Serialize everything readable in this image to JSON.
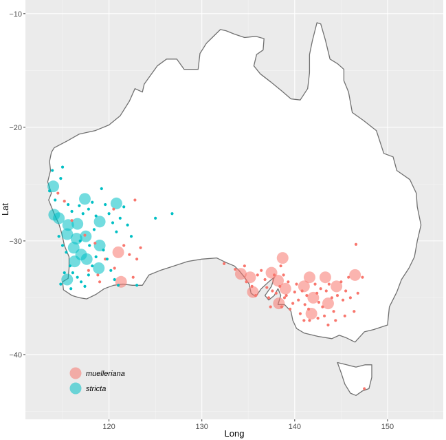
{
  "chart_data": {
    "type": "scatter",
    "xlabel": "Long",
    "ylabel": "Lat",
    "xlim": [
      111,
      156
    ],
    "ylim": [
      -45.7,
      -8.8
    ],
    "x_ticks": [
      120,
      130,
      140,
      150
    ],
    "y_ticks": [
      -10,
      -20,
      -30,
      -40
    ],
    "grid": true,
    "background": "map of Australia (white land, grey coastline)",
    "legend_position": "bottom-left",
    "series": [
      {
        "name": "muelleriana",
        "color": "#F8766D",
        "large_points": [
          [
            121.0,
            -31.0
          ],
          [
            121.3,
            -33.6
          ],
          [
            134.2,
            -32.9
          ],
          [
            135.5,
            -34.5
          ],
          [
            135.2,
            -33.2
          ],
          [
            137.5,
            -32.8
          ],
          [
            138.2,
            -33.5
          ],
          [
            138.7,
            -31.5
          ],
          [
            139.0,
            -34.2
          ],
          [
            138.3,
            -35.5
          ],
          [
            141.0,
            -34.0
          ],
          [
            141.6,
            -33.2
          ],
          [
            142.0,
            -35.0
          ],
          [
            141.8,
            -36.4
          ],
          [
            143.3,
            -33.2
          ],
          [
            144.5,
            -34.0
          ],
          [
            143.6,
            -35.5
          ],
          [
            146.5,
            -33.0
          ]
        ],
        "small_points": [
          [
            114.5,
            -25.8
          ],
          [
            115.2,
            -26.5
          ],
          [
            116.0,
            -28.2
          ],
          [
            117.4,
            -29.5
          ],
          [
            118.5,
            -30.2
          ],
          [
            119.6,
            -31.6
          ],
          [
            118.8,
            -33.0
          ],
          [
            120.6,
            -32.4
          ],
          [
            121.6,
            -30.4
          ],
          [
            122.2,
            -31.2
          ],
          [
            122.6,
            -33.2
          ],
          [
            123.0,
            -31.6
          ],
          [
            122.8,
            -26.4
          ],
          [
            120.5,
            -27.2
          ],
          [
            119.0,
            -33.6
          ],
          [
            117.8,
            -32.6
          ],
          [
            123.4,
            -30.6
          ],
          [
            132.4,
            -32.0
          ],
          [
            133.6,
            -32.5
          ],
          [
            134.6,
            -32.2
          ],
          [
            134.8,
            -33.6
          ],
          [
            135.4,
            -34.0
          ],
          [
            135.8,
            -34.8
          ],
          [
            136.0,
            -33.0
          ],
          [
            136.4,
            -32.6
          ],
          [
            136.8,
            -33.4
          ],
          [
            137.0,
            -34.1
          ],
          [
            137.2,
            -35.0
          ],
          [
            137.6,
            -34.4
          ],
          [
            137.8,
            -33.0
          ],
          [
            138.0,
            -34.6
          ],
          [
            138.4,
            -34.0
          ],
          [
            138.5,
            -32.2
          ],
          [
            138.8,
            -33.0
          ],
          [
            138.9,
            -35.0
          ],
          [
            139.1,
            -34.8
          ],
          [
            139.3,
            -33.6
          ],
          [
            139.5,
            -36.0
          ],
          [
            139.8,
            -35.5
          ],
          [
            140.0,
            -34.5
          ],
          [
            140.2,
            -33.8
          ],
          [
            140.4,
            -35.2
          ],
          [
            140.6,
            -36.4
          ],
          [
            140.8,
            -34.4
          ],
          [
            141.1,
            -35.6
          ],
          [
            141.3,
            -34.8
          ],
          [
            141.5,
            -36.0
          ],
          [
            141.6,
            -37.0
          ],
          [
            142.2,
            -33.8
          ],
          [
            142.4,
            -34.6
          ],
          [
            142.6,
            -35.4
          ],
          [
            142.5,
            -36.8
          ],
          [
            142.8,
            -34.2
          ],
          [
            143.0,
            -35.8
          ],
          [
            143.2,
            -36.6
          ],
          [
            143.4,
            -34.4
          ],
          [
            143.7,
            -33.8
          ],
          [
            144.0,
            -35.0
          ],
          [
            144.2,
            -36.2
          ],
          [
            144.6,
            -34.8
          ],
          [
            145.0,
            -33.6
          ],
          [
            145.2,
            -35.2
          ],
          [
            145.5,
            -34.4
          ],
          [
            145.8,
            -33.2
          ],
          [
            146.0,
            -35.0
          ],
          [
            146.8,
            -34.6
          ],
          [
            146.6,
            -30.3
          ],
          [
            147.3,
            -33.2
          ],
          [
            146.4,
            -36.2
          ],
          [
            145.4,
            -36.6
          ],
          [
            144.4,
            -37.0
          ],
          [
            143.6,
            -37.4
          ],
          [
            141.0,
            -37.0
          ],
          [
            138.6,
            -35.8
          ],
          [
            137.4,
            -35.8
          ],
          [
            147.5,
            -43.0
          ]
        ]
      },
      {
        "name": "stricta",
        "color": "#00BFC4",
        "large_points": [
          [
            114.0,
            -25.2
          ],
          [
            114.1,
            -27.7
          ],
          [
            114.6,
            -28.0
          ],
          [
            115.6,
            -28.6
          ],
          [
            116.6,
            -28.5
          ],
          [
            115.5,
            -29.4
          ],
          [
            116.5,
            -29.8
          ],
          [
            117.5,
            -29.6
          ],
          [
            116.2,
            -30.6
          ],
          [
            117.0,
            -31.2
          ],
          [
            117.6,
            -31.6
          ],
          [
            116.3,
            -31.8
          ],
          [
            115.5,
            -33.4
          ],
          [
            117.4,
            -26.3
          ],
          [
            120.8,
            -26.7
          ],
          [
            119.0,
            -28.3
          ],
          [
            119.0,
            -30.4
          ],
          [
            118.9,
            -32.4
          ]
        ],
        "small_points": [
          [
            113.6,
            -25.6
          ],
          [
            114.2,
            -26.4
          ],
          [
            114.8,
            -24.5
          ],
          [
            115.0,
            -23.5
          ],
          [
            115.6,
            -26.8
          ],
          [
            116.0,
            -27.4
          ],
          [
            116.8,
            -26.9
          ],
          [
            117.2,
            -27.6
          ],
          [
            117.8,
            -27.2
          ],
          [
            118.2,
            -26.6
          ],
          [
            118.6,
            -27.8
          ],
          [
            119.2,
            -25.4
          ],
          [
            119.6,
            -26.8
          ],
          [
            120.0,
            -27.6
          ],
          [
            120.4,
            -28.4
          ],
          [
            120.8,
            -29.2
          ],
          [
            121.2,
            -28.0
          ],
          [
            121.6,
            -27.0
          ],
          [
            122.0,
            -28.6
          ],
          [
            122.4,
            -29.6
          ],
          [
            114.6,
            -29.6
          ],
          [
            115.0,
            -30.4
          ],
          [
            115.4,
            -31.0
          ],
          [
            115.8,
            -32.2
          ],
          [
            116.1,
            -32.8
          ],
          [
            116.6,
            -33.2
          ],
          [
            117.0,
            -33.6
          ],
          [
            117.4,
            -34.0
          ],
          [
            117.8,
            -33.0
          ],
          [
            118.2,
            -32.2
          ],
          [
            118.6,
            -31.4
          ],
          [
            119.4,
            -30.8
          ],
          [
            119.8,
            -31.6
          ],
          [
            120.2,
            -32.6
          ],
          [
            120.6,
            -33.4
          ],
          [
            121.0,
            -33.9
          ],
          [
            118.4,
            -29.0
          ],
          [
            117.9,
            -30.4
          ],
          [
            116.9,
            -30.0
          ],
          [
            115.2,
            -32.8
          ],
          [
            114.8,
            -33.8
          ],
          [
            115.9,
            -34.2
          ],
          [
            123.0,
            -33.9
          ],
          [
            126.8,
            -27.6
          ],
          [
            125.0,
            -28.0
          ],
          [
            113.9,
            -23.8
          ]
        ]
      }
    ]
  }
}
